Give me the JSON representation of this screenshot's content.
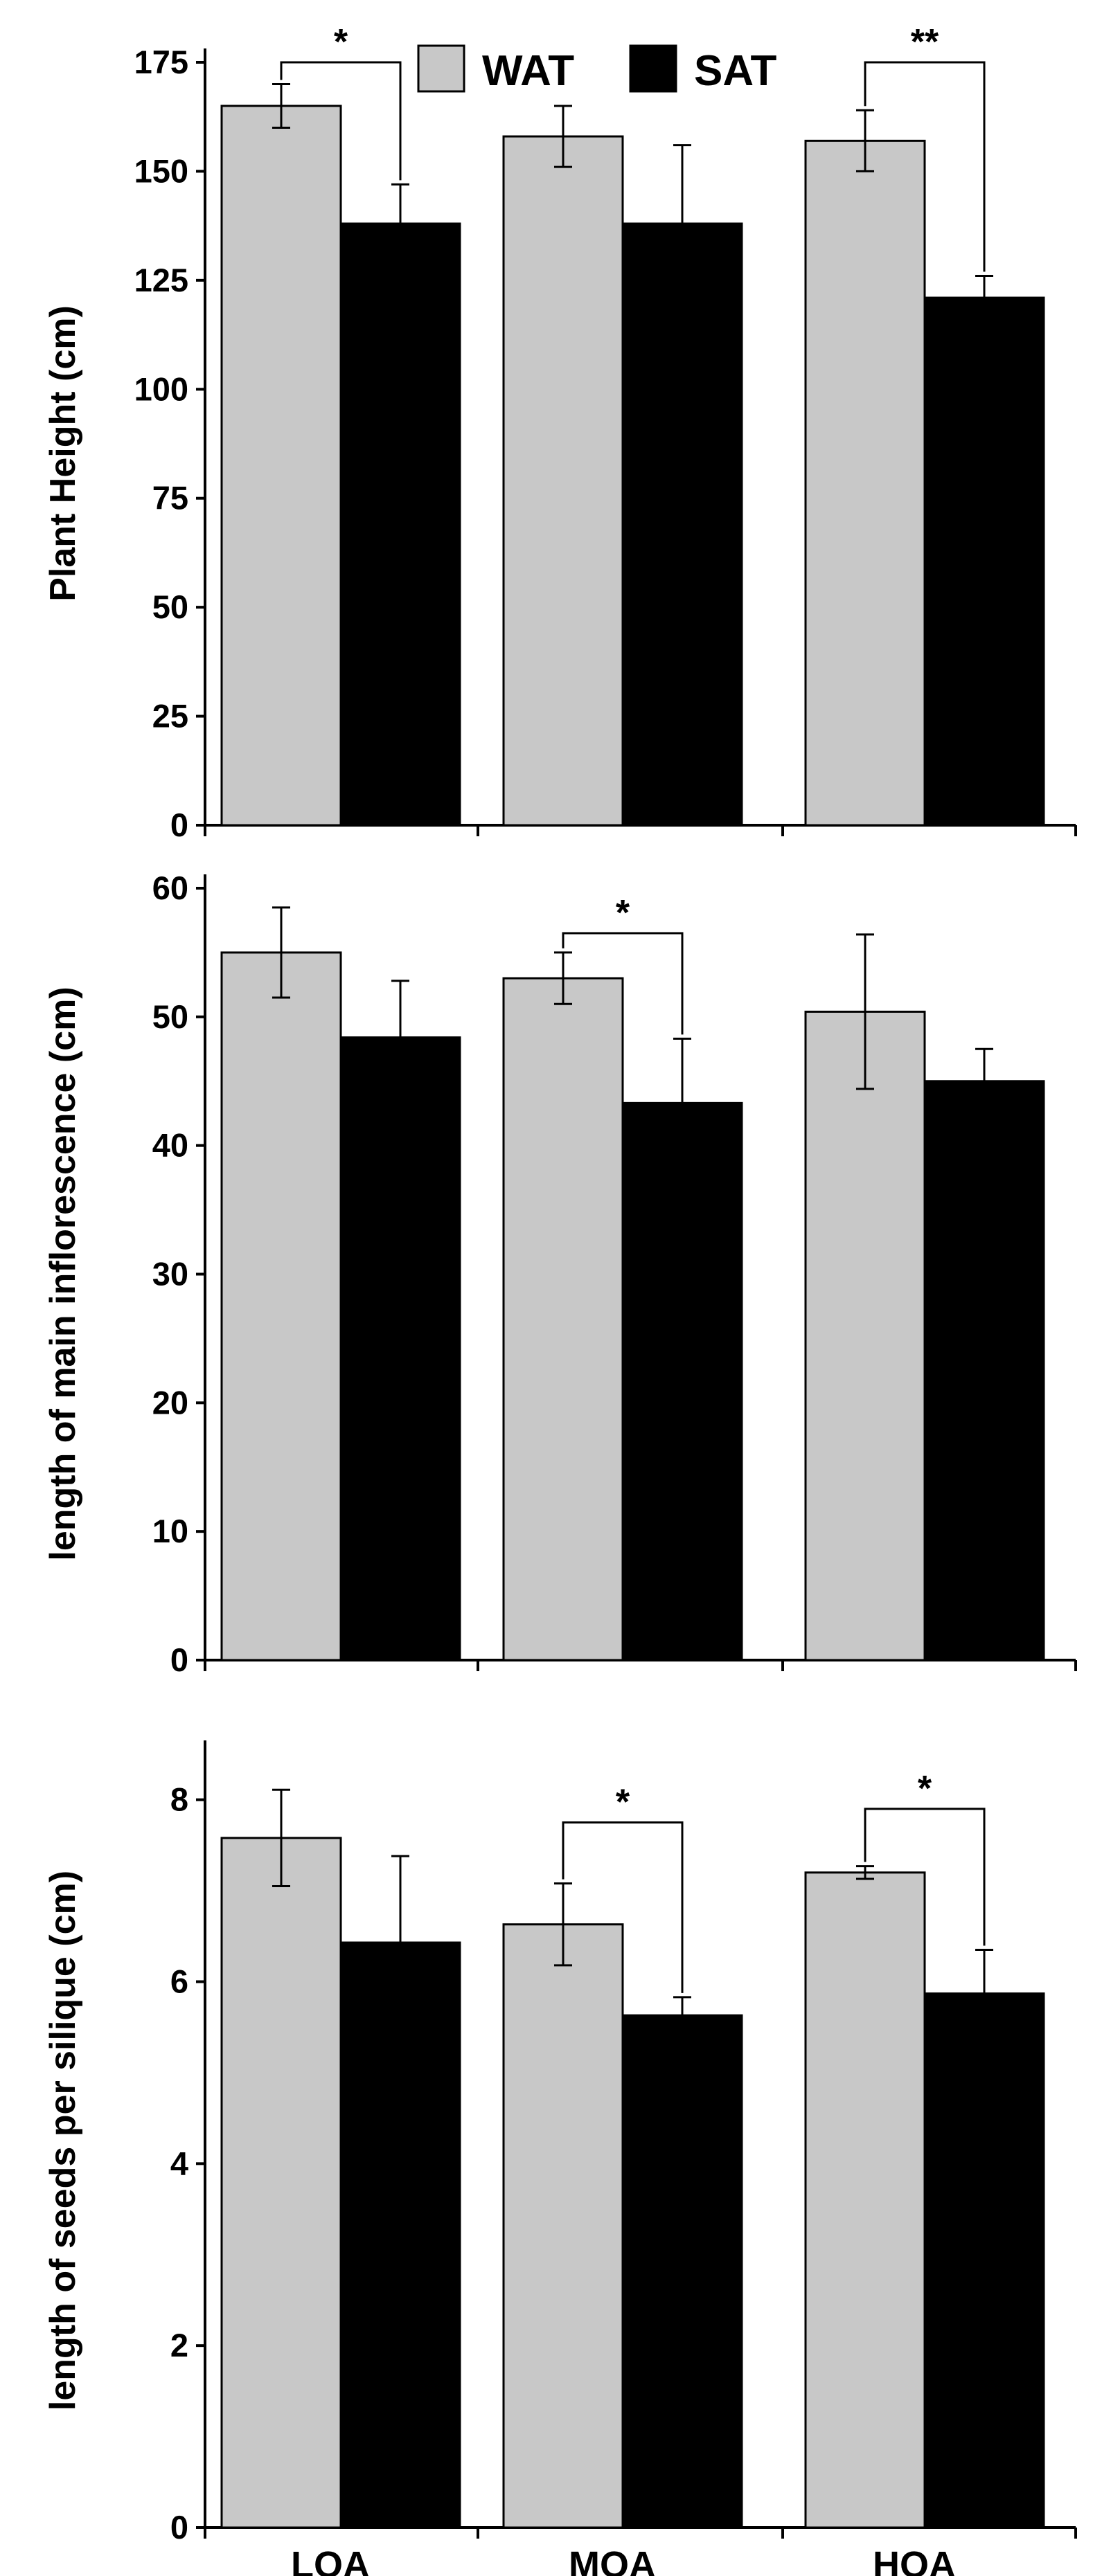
{
  "colors": {
    "WAT": "#c8c8c8",
    "SAT": "#000000",
    "axis": "#000000"
  },
  "legend": {
    "items": [
      {
        "name": "WAT",
        "color": "#c8c8c8"
      },
      {
        "name": "SAT",
        "color": "#000000"
      }
    ]
  },
  "chart_data": [
    {
      "type": "bar",
      "title": "",
      "xlabel": "",
      "ylabel": "Plant Height (cm)",
      "ylim": [
        0,
        175
      ],
      "yticks": [
        0,
        25,
        50,
        75,
        100,
        125,
        150,
        175
      ],
      "categories": [
        "LOA",
        "MOA",
        "HOA"
      ],
      "show_category_labels": false,
      "series": [
        {
          "name": "WAT",
          "values": [
            165,
            158,
            157
          ],
          "errors": [
            5,
            7,
            7
          ]
        },
        {
          "name": "SAT",
          "values": [
            138,
            138,
            121
          ],
          "errors": [
            9,
            18,
            5
          ]
        }
      ],
      "annotations": [
        {
          "category": "LOA",
          "label": "*",
          "top": 175
        },
        {
          "category": "HOA",
          "label": "**",
          "top": 175
        }
      ]
    },
    {
      "type": "bar",
      "title": "",
      "xlabel": "",
      "ylabel": "length of main inflorescence  (cm)",
      "ylim": [
        0,
        60
      ],
      "yticks": [
        0,
        10,
        20,
        30,
        40,
        50,
        60
      ],
      "categories": [
        "LOA",
        "MOA",
        "HOA"
      ],
      "show_category_labels": false,
      "series": [
        {
          "name": "WAT",
          "values": [
            55,
            53,
            50.4
          ],
          "errors": [
            3.5,
            2,
            6
          ]
        },
        {
          "name": "SAT",
          "values": [
            48.4,
            43.3,
            45
          ],
          "errors": [
            4.4,
            5,
            2.5
          ]
        }
      ],
      "annotations": [
        {
          "category": "MOA",
          "label": "*",
          "top": 56.5
        }
      ]
    },
    {
      "type": "bar",
      "title": "",
      "xlabel": "",
      "ylabel": "length of seeds per silique  (cm)",
      "ylim": [
        0,
        8.5
      ],
      "yticks": [
        0,
        2,
        4,
        6,
        8
      ],
      "categories": [
        "LOA",
        "MOA",
        "HOA"
      ],
      "show_category_labels": true,
      "series": [
        {
          "name": "WAT",
          "values": [
            7.58,
            6.63,
            7.2
          ],
          "errors": [
            0.53,
            0.45,
            0.07
          ]
        },
        {
          "name": "SAT",
          "values": [
            6.43,
            5.63,
            5.87
          ],
          "errors": [
            0.95,
            0.2,
            0.48
          ]
        }
      ],
      "annotations": [
        {
          "category": "MOA",
          "label": "*",
          "top": 7.75
        },
        {
          "category": "HOA",
          "label": "*",
          "top": 7.9
        }
      ]
    }
  ]
}
